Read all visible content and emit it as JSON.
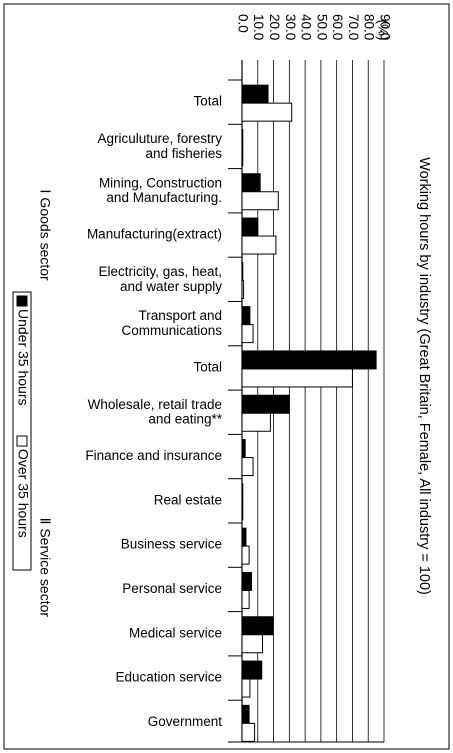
{
  "chart_data": {
    "type": "bar",
    "orientation": "horizontal",
    "title": "Working hours by industry (Great Britain, Female, All industry = 100)",
    "unit_label": "(%)",
    "groups": [
      "Ⅰ Goods sector",
      "Ⅱ Service sector"
    ],
    "categories": [
      "Total",
      "Agriculuture, forestry\nand fisheries",
      "Mining, Construction\nand Manufacturing.",
      "Manufacturing(extract)",
      "Electricity, gas, heat,\nand water supply",
      "Transport and\nCommunications",
      "Total",
      "Wholesale, retail trade\nand eating**",
      "Finance and insurance",
      "Real estate",
      "Business service",
      "Personal service",
      "Medical service",
      "Education service",
      "Government"
    ],
    "series": [
      {
        "name": "Under 35 hours",
        "color": "#000000",
        "values": [
          16.5,
          0.5,
          11.5,
          10,
          0.5,
          5,
          85,
          30,
          2,
          0.5,
          2.5,
          6,
          19.5,
          12.5,
          4.5
        ]
      },
      {
        "name": "Over 35 hours",
        "color": "#ffffff",
        "values": [
          31.5,
          0.5,
          23,
          21.5,
          1,
          7,
          70,
          18,
          7,
          0.5,
          4.5,
          4.5,
          13,
          5,
          8
        ]
      }
    ],
    "xlim": [
      0,
      90
    ],
    "xticks": [
      {
        "value": 0,
        "label": "0.0"
      },
      {
        "value": 10,
        "label": "10.0"
      },
      {
        "value": 20,
        "label": "20.0"
      },
      {
        "value": 30,
        "label": "30.0"
      },
      {
        "value": 40,
        "label": "40.0"
      },
      {
        "value": 50,
        "label": "50.0"
      },
      {
        "value": 60,
        "label": "60.0"
      },
      {
        "value": 70,
        "label": "70.0"
      },
      {
        "value": 80,
        "label": "80.0"
      },
      {
        "value": 90,
        "label": "90.0"
      }
    ],
    "grid": true
  }
}
